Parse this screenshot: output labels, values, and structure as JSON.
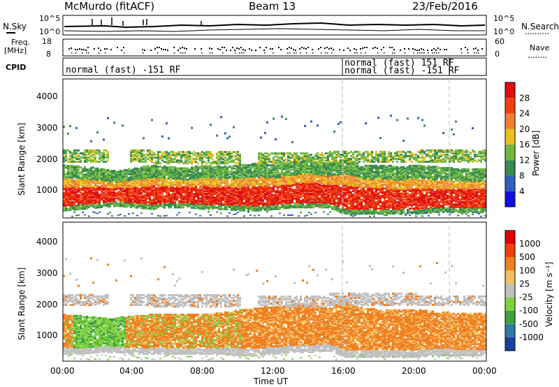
{
  "header": {
    "station": "McMurdo (fitACF)",
    "beam": "Beam 13",
    "date": "23/Feb/2016"
  },
  "top_panels": {
    "nsky": {
      "label": "N.Sky",
      "ticks_left": [
        "10^5",
        "10^0"
      ],
      "ticks_right": [
        "10^5",
        "10^0"
      ],
      "right_label": "N.Search"
    },
    "freq": {
      "label_line1": "Freq.",
      "label_line2": "[MHz]",
      "ticks_left": [
        "18",
        "8"
      ],
      "ticks_right": [
        "60",
        "0"
      ],
      "right_label": "Nave"
    },
    "cpid": {
      "label": "CPID",
      "segments": [
        {
          "text": "normal (fast) -151 RF",
          "start": "00:00",
          "end": "16:00",
          "row": 2
        },
        {
          "text": "normal (fast) 151 RF",
          "start": "16:00",
          "end": "22:00",
          "row": 1
        },
        {
          "text": "normal (fast) -151 RF",
          "start": "16:00",
          "end": "22:00",
          "row": 2
        }
      ]
    }
  },
  "chart_data": [
    {
      "type": "heatmap",
      "panel": "power",
      "ylabel": "Slant Range [km]",
      "yticks": [
        "1000",
        "2000",
        "3000",
        "4000"
      ],
      "ylim": [
        180,
        4600
      ],
      "colorbar_label": "Power [dB]",
      "colorbar_ticks": [
        "4",
        "8",
        "12",
        "16",
        "20",
        "24",
        "28"
      ],
      "colors": [
        "#1010e0",
        "#3060c0",
        "#3a8a50",
        "#70b840",
        "#e8c020",
        "#f08030",
        "#f04010",
        "#e01010"
      ],
      "x_hours": [
        0,
        1,
        2,
        3,
        4,
        5,
        6,
        7,
        8,
        9,
        10,
        11,
        12,
        13,
        14,
        15,
        16,
        17,
        18,
        19,
        20,
        21,
        22,
        23,
        24
      ],
      "main_band_km": [
        [
          600,
          1700
        ],
        [
          650,
          1650
        ],
        [
          700,
          1600
        ],
        [
          750,
          1500
        ],
        [
          700,
          1600
        ],
        [
          650,
          1700
        ],
        [
          700,
          1650
        ],
        [
          700,
          1600
        ],
        [
          650,
          1700
        ],
        [
          650,
          1650
        ],
        [
          600,
          1700
        ],
        [
          600,
          1750
        ],
        [
          650,
          1700
        ],
        [
          700,
          1800
        ],
        [
          700,
          1850
        ],
        [
          700,
          1750
        ],
        [
          500,
          1900
        ],
        [
          500,
          1700
        ],
        [
          500,
          1700
        ],
        [
          500,
          1650
        ],
        [
          500,
          1700
        ],
        [
          550,
          1650
        ],
        [
          550,
          1600
        ],
        [
          550,
          1600
        ],
        [
          550,
          1600
        ]
      ],
      "second_band_km": [
        [
          2000,
          2400
        ],
        [
          1950,
          2350
        ],
        [
          1950,
          2300
        ],
        [
          2000,
          2350
        ],
        [
          2000,
          2400
        ]
      ]
    },
    {
      "type": "heatmap",
      "panel": "velocity",
      "ylabel": "Slant Range [km]",
      "yticks": [
        "1000",
        "2000",
        "3000",
        "4000"
      ],
      "ylim": [
        180,
        4600
      ],
      "colorbar_label": "Velocity [m s⁻¹]",
      "colorbar_ticks": [
        "1000",
        "500",
        "100",
        "25",
        "-25",
        "-100",
        "-500",
        "-1000"
      ],
      "colors": [
        "#1a3fa0",
        "#2f7aa0",
        "#3fa040",
        "#7fd040",
        "#c0c0c0",
        "#f0c060",
        "#f08020",
        "#f04010",
        "#e00000"
      ],
      "x_hours": [
        0,
        1,
        2,
        3,
        4,
        5,
        6,
        7,
        8,
        9,
        10,
        11,
        12,
        13,
        14,
        15,
        16,
        17,
        18,
        19,
        20,
        21,
        22,
        23,
        24
      ],
      "main_band_km": [
        [
          600,
          1500
        ],
        [
          600,
          1450
        ],
        [
          650,
          1400
        ],
        [
          650,
          1400
        ],
        [
          600,
          1450
        ],
        [
          600,
          1500
        ],
        [
          600,
          1500
        ],
        [
          600,
          1500
        ],
        [
          600,
          1500
        ],
        [
          600,
          1550
        ],
        [
          550,
          1650
        ],
        [
          550,
          1700
        ],
        [
          600,
          1750
        ],
        [
          650,
          1800
        ],
        [
          650,
          1800
        ],
        [
          700,
          1700
        ],
        [
          500,
          1900
        ],
        [
          500,
          1700
        ],
        [
          500,
          1650
        ],
        [
          500,
          1650
        ],
        [
          500,
          1650
        ],
        [
          550,
          1600
        ],
        [
          550,
          1550
        ],
        [
          550,
          1550
        ],
        [
          550,
          1550
        ]
      ],
      "second_band_km": [
        [
          2000,
          2350
        ],
        [
          1950,
          2350
        ],
        [
          1950,
          2300
        ],
        [
          2000,
          2400
        ],
        [
          2000,
          2300
        ]
      ]
    }
  ],
  "x_axis": {
    "ticks": [
      "00:00",
      "04:00",
      "08:00",
      "12:00",
      "16:00",
      "20:00",
      "00:00"
    ],
    "label": "Time UT"
  }
}
